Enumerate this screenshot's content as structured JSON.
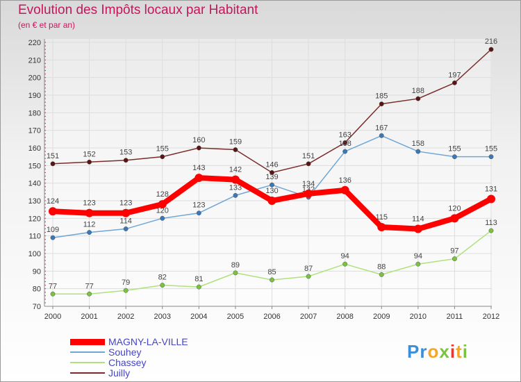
{
  "header": {
    "title": "Evolution des Impôts locaux par Habitant",
    "subtitle": "(en € et par an)"
  },
  "colors": {
    "title": "#c2185b",
    "legend_text": "#4444cc"
  },
  "logo": {
    "text": "Proxiti",
    "letters": [
      {
        "ch": "P",
        "color": "#3a8fd8"
      },
      {
        "ch": "r",
        "color": "#3a8fd8"
      },
      {
        "ch": "o",
        "color": "#f5a623"
      },
      {
        "ch": "x",
        "color": "#7cc242"
      },
      {
        "ch": "i",
        "color": "#e53935"
      },
      {
        "ch": "t",
        "color": "#f5a623"
      },
      {
        "ch": "i",
        "color": "#7cc242"
      }
    ]
  },
  "chart_data": {
    "type": "line",
    "title": "Evolution des Impôts locaux par Habitant",
    "subtitle": "(en € et par an)",
    "x": [
      "2000",
      "2001",
      "2002",
      "2003",
      "2004",
      "2005",
      "2006",
      "2007",
      "2008",
      "2009",
      "2010",
      "2011",
      "2012"
    ],
    "ylim": [
      70,
      220
    ],
    "yticks": [
      70,
      80,
      90,
      100,
      110,
      120,
      130,
      140,
      150,
      160,
      170,
      180,
      190,
      200,
      210,
      220
    ],
    "grid": true,
    "legend_position": "bottom-left",
    "series": [
      {
        "name": "Juilly",
        "color": "#7a2c2c",
        "marker": "#5a1414",
        "width": 1.5,
        "values": [
          151,
          152,
          153,
          155,
          160,
          159,
          146,
          151,
          163,
          185,
          188,
          197,
          216
        ]
      },
      {
        "name": "Souhey",
        "color": "#6fa6d6",
        "marker": "#3a78b8",
        "width": 1.5,
        "values": [
          109,
          112,
          114,
          120,
          123,
          133,
          139,
          132,
          158,
          167,
          158,
          155,
          155
        ]
      },
      {
        "name": "Chassey",
        "color": "#aee27a",
        "marker": "#7cc242",
        "width": 1.5,
        "values": [
          77,
          77,
          79,
          82,
          81,
          89,
          85,
          87,
          94,
          88,
          94,
          97,
          113
        ]
      },
      {
        "name": "MAGNY-LA-VILLE",
        "color": "#ff0000",
        "marker": "#ff0000",
        "width": 8,
        "values": [
          124,
          123,
          123,
          128,
          143,
          142,
          130,
          134,
          136,
          115,
          114,
          120,
          131
        ]
      }
    ],
    "labels": {
      "Juilly": [
        "151",
        "152",
        "153",
        "155",
        "160",
        "159",
        "146",
        "151",
        "163",
        "185",
        "188",
        "197",
        "216"
      ],
      "Souhey": [
        "109",
        "112",
        "114",
        "120",
        "123",
        "133",
        "139",
        "132",
        "158",
        "167",
        "158",
        "155",
        "155"
      ],
      "Chassey": [
        "77",
        "77",
        "79",
        "82",
        "81",
        "89",
        "85",
        "87",
        "94",
        "88",
        "94",
        "97",
        "113"
      ],
      "MAGNY-LA-VILLE": [
        "124",
        "123",
        "123",
        "128",
        "143",
        "142",
        "130",
        "134",
        "136",
        "115",
        "114",
        "120",
        "131"
      ]
    },
    "legend_order": [
      "MAGNY-LA-VILLE",
      "Souhey",
      "Chassey",
      "Juilly"
    ]
  }
}
